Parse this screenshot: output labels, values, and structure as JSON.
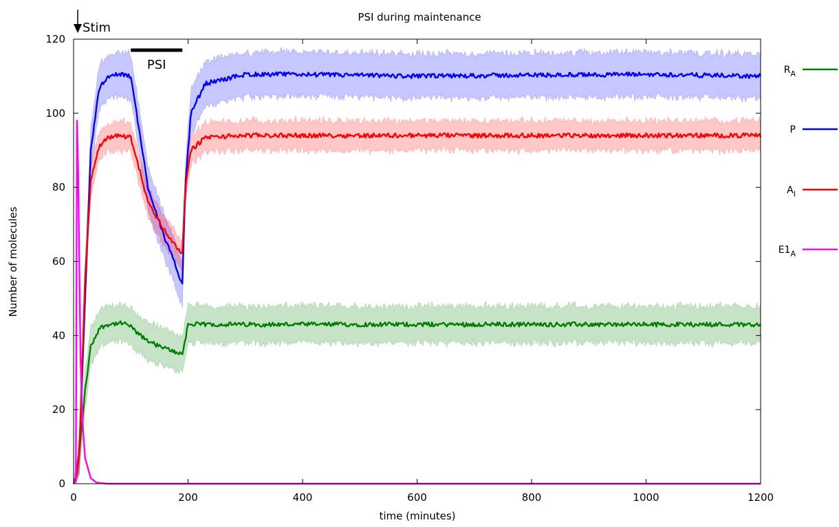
{
  "chart_data": {
    "type": "line",
    "title": "PSI during maintenance",
    "xlabel": "time (minutes)",
    "ylabel": "Number of molecules",
    "xlim": [
      0,
      1200
    ],
    "ylim": [
      0,
      120
    ],
    "xticks": [
      0,
      200,
      400,
      600,
      800,
      1000,
      1200
    ],
    "yticks": [
      0,
      20,
      40,
      60,
      80,
      100,
      120
    ],
    "grid": false,
    "legend_position": "right, outside plot",
    "annotations": {
      "stim": {
        "label": "Stim",
        "x": 0
      },
      "psi": {
        "label": "PSI",
        "x_start": 100,
        "x_end": 190
      }
    },
    "series": [
      {
        "name": "RA",
        "base": "R",
        "sub": "A",
        "color": "#008000",
        "band_halfwidth": 5,
        "x": [
          0,
          5,
          10,
          20,
          30,
          45,
          60,
          80,
          95,
          120,
          150,
          170,
          190,
          200,
          250,
          400,
          600,
          800,
          1000,
          1200
        ],
        "y": [
          0,
          2,
          8,
          25,
          37,
          42,
          43,
          43.3,
          43,
          39.5,
          37,
          36,
          35,
          43,
          43,
          43,
          43,
          43,
          43,
          43
        ]
      },
      {
        "name": "P",
        "base": "P",
        "sub": "",
        "color": "#0000ff",
        "band_halfwidth": 6,
        "x": [
          0,
          5,
          10,
          20,
          30,
          45,
          60,
          80,
          100,
          130,
          160,
          190,
          195,
          205,
          230,
          300,
          400,
          600,
          800,
          1000,
          1200
        ],
        "y": [
          0,
          2,
          8,
          50,
          90,
          107,
          110,
          110.5,
          110,
          80,
          66,
          54,
          80,
          100,
          108,
          110.5,
          110.5,
          110,
          110.3,
          110.5,
          110
        ]
      },
      {
        "name": "AI",
        "base": "A",
        "sub": "I",
        "color": "#ff0000",
        "band_halfwidth": 4,
        "x": [
          0,
          5,
          10,
          20,
          30,
          45,
          60,
          80,
          100,
          130,
          160,
          190,
          195,
          205,
          230,
          300,
          400,
          600,
          800,
          1000,
          1200
        ],
        "y": [
          1,
          1.5,
          8,
          55,
          82,
          91,
          93.5,
          94,
          93.5,
          76,
          68,
          62,
          80,
          90,
          93.5,
          94,
          94,
          94,
          94,
          94,
          94
        ]
      },
      {
        "name": "E1A",
        "base": "E1",
        "sub": "A",
        "color": "#ff00ff",
        "band_halfwidth": 0,
        "x": [
          0,
          5,
          6,
          7,
          8,
          10,
          12,
          15,
          20,
          30,
          40,
          60,
          1200
        ],
        "y": [
          0,
          1,
          98,
          100,
          84,
          60,
          35,
          18,
          7,
          1.5,
          0.3,
          0,
          0
        ]
      }
    ]
  }
}
